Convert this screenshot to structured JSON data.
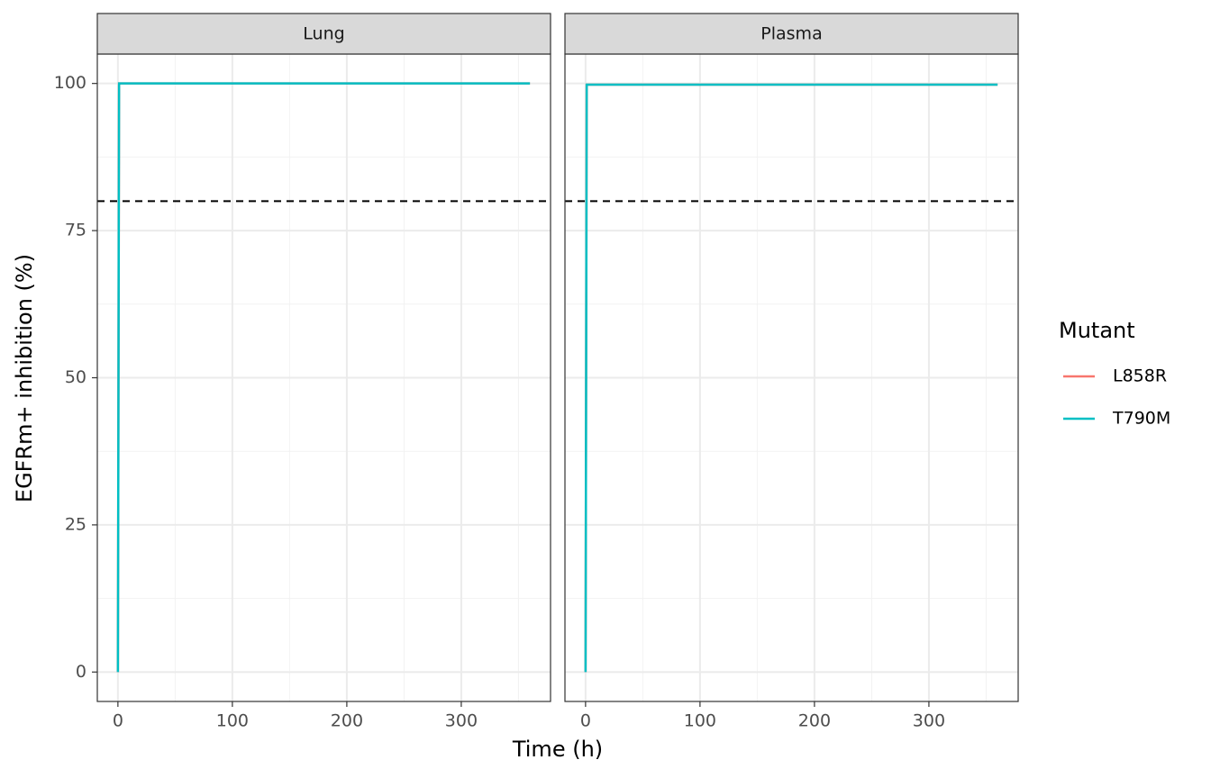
{
  "chart_data": {
    "type": "line",
    "xlabel": "Time (h)",
    "ylabel": "EGFRm+ inhibition (%)",
    "legend_title": "Mutant",
    "xlim": [
      -18,
      378
    ],
    "ylim": [
      -5,
      105
    ],
    "xticks": [
      0,
      100,
      200,
      300
    ],
    "yticks": [
      0,
      25,
      50,
      75,
      100
    ],
    "xminor": [
      50,
      150,
      250,
      350
    ],
    "yminor": [
      12.5,
      37.5,
      62.5,
      87.5
    ],
    "grid": true,
    "hline": 80,
    "legend": "right",
    "panels": [
      {
        "title": "Lung",
        "x": [
          0,
          1,
          360
        ],
        "series": [
          {
            "name": "L858R",
            "color": "#F8766D",
            "values": [
              0,
              100,
              100
            ]
          },
          {
            "name": "T790M",
            "color": "#00BFC4",
            "values": [
              0,
              100,
              100
            ]
          }
        ]
      },
      {
        "title": "Plasma",
        "x": [
          0,
          1,
          360
        ],
        "series": [
          {
            "name": "L858R",
            "color": "#F8766D",
            "values": [
              0,
              99.8,
              99.8
            ]
          },
          {
            "name": "T790M",
            "color": "#00BFC4",
            "values": [
              0,
              99.8,
              99.8
            ]
          }
        ]
      }
    ]
  }
}
